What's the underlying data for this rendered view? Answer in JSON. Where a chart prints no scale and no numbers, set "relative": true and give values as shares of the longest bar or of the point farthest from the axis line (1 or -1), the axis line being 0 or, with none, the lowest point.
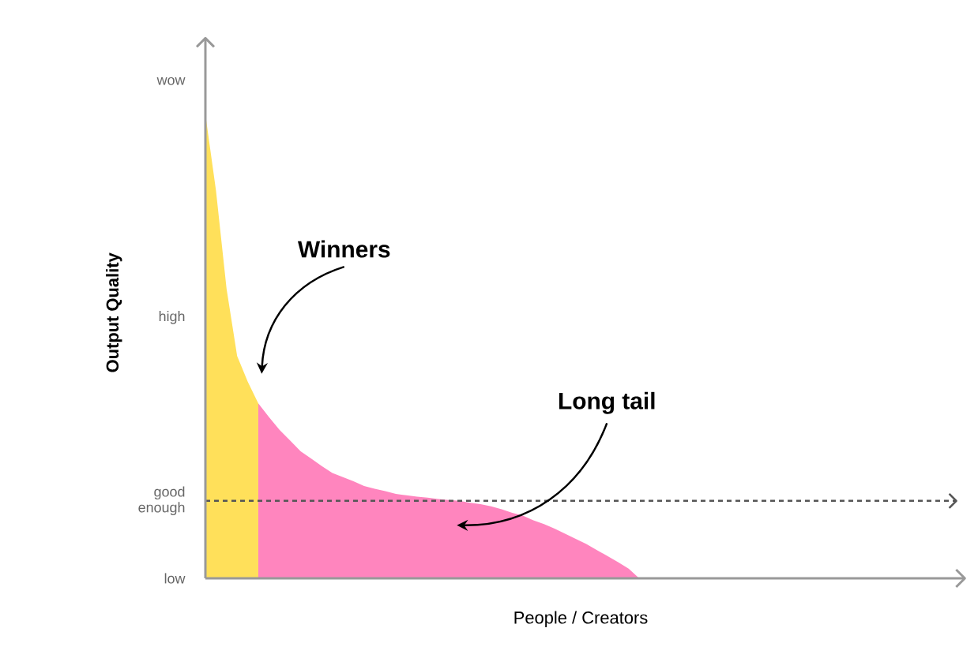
{
  "chart_data": {
    "type": "area",
    "relative": true,
    "xlabel": "People / Creators",
    "ylabel": "Output Quality",
    "categories": [
      null,
      null,
      null,
      null,
      null,
      null,
      null,
      null,
      null,
      null,
      null,
      null,
      null,
      null,
      null,
      null,
      null,
      null,
      null,
      null,
      null,
      null,
      null,
      null,
      null,
      null,
      null,
      null,
      null,
      null,
      null,
      null,
      null,
      null,
      null,
      null,
      null,
      null,
      null,
      null,
      null,
      null
    ],
    "series": [
      {
        "color": "#ffe05a",
        "values": [
          1,
          0.836,
          0.624,
          0.479,
          0.424,
          0.377,
          null,
          null,
          null,
          null,
          null,
          null,
          null,
          null,
          null,
          null,
          null,
          null,
          null,
          null,
          null,
          null,
          null,
          null,
          null,
          null,
          null,
          null,
          null,
          null,
          null,
          null,
          null,
          null,
          null,
          null,
          null,
          null,
          null,
          null,
          null,
          null
        ]
      },
      {
        "color": "#ff85be",
        "values": [
          null,
          null,
          null,
          null,
          null,
          0.377,
          0.348,
          0.32,
          0.297,
          0.274,
          0.258,
          0.242,
          0.227,
          0.218,
          0.209,
          0.199,
          0.193,
          0.188,
          0.182,
          0.179,
          0.176,
          0.174,
          0.171,
          0.169,
          0.167,
          0.163,
          0.16,
          0.155,
          0.149,
          0.141,
          0.135,
          0.125,
          0.117,
          0.107,
          0.096,
          0.085,
          0.074,
          0.061,
          0.048,
          0.035,
          0.021,
          0
        ]
      }
    ],
    "ref_lines": [
      {
        "axis": "y",
        "value": 0.167,
        "color": "#555555",
        "line_style": "dashed"
      }
    ],
    "annotations": [
      "low",
      "good enough",
      "high",
      "wow",
      "Winners",
      "Long tail"
    ]
  }
}
